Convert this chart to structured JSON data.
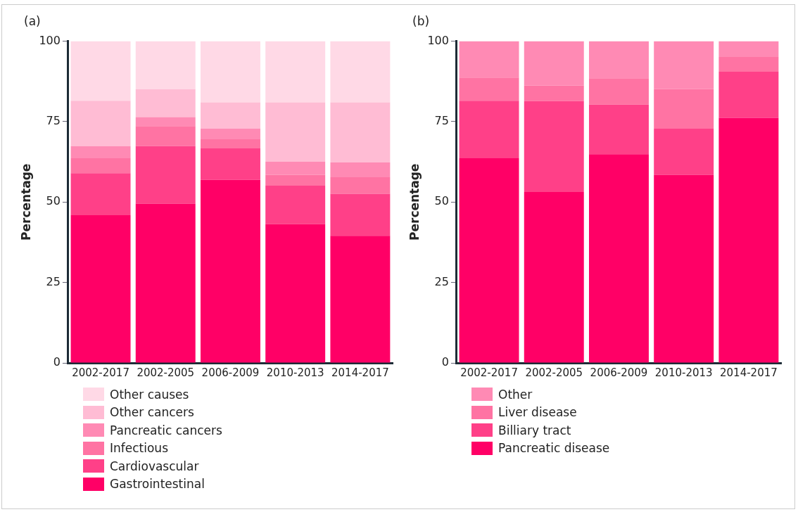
{
  "chart_data": [
    {
      "type": "bar",
      "title": "(a)",
      "ylabel": "Percentage",
      "stacked": true,
      "legend": "bottom",
      "grid": false,
      "categories": [
        "2002-2017",
        "2002-2005",
        "2006-2009",
        "2010-2013",
        "2014-2017"
      ],
      "ylim": [
        0,
        100
      ],
      "yticks": [
        0,
        25,
        50,
        75,
        100
      ],
      "series": [
        {
          "name": "Gastrointestinal",
          "color": "#ff0066",
          "values": [
            45.9,
            49.5,
            56.9,
            43.1,
            39.5
          ]
        },
        {
          "name": "Cardiovascular",
          "color": "#ff4088",
          "values": [
            13.1,
            17.9,
            9.8,
            12.0,
            13.1
          ]
        },
        {
          "name": "Infectious",
          "color": "#ff73a3",
          "values": [
            4.6,
            6.2,
            2.8,
            3.4,
            5.1
          ]
        },
        {
          "name": "Pancreatic cancers",
          "color": "#ff8ab4",
          "values": [
            3.8,
            2.8,
            3.3,
            4.1,
            4.6
          ]
        },
        {
          "name": "Other cancers",
          "color": "#ffbcd4",
          "values": [
            14.1,
            8.7,
            8.2,
            18.4,
            18.7
          ]
        },
        {
          "name": "Other causes",
          "color": "#ffd9e6",
          "values": [
            18.5,
            14.9,
            19.0,
            19.0,
            19.0
          ]
        }
      ]
    },
    {
      "type": "bar",
      "title": "(b)",
      "ylabel": "Percentage",
      "stacked": true,
      "legend": "bottom",
      "grid": false,
      "categories": [
        "2002-2017",
        "2002-2005",
        "2006-2009",
        "2010-2013",
        "2014-2017"
      ],
      "ylim": [
        0,
        100
      ],
      "yticks": [
        0,
        25,
        50,
        75,
        100
      ],
      "series": [
        {
          "name": "Pancreatic disease",
          "color": "#ff0066",
          "values": [
            63.6,
            53.1,
            64.9,
            58.5,
            76.2
          ]
        },
        {
          "name": "Billiary tract",
          "color": "#ff4088",
          "values": [
            17.9,
            28.3,
            15.4,
            14.3,
            14.3
          ]
        },
        {
          "name": "Liver disease",
          "color": "#ff73a3",
          "values": [
            7.2,
            4.8,
            8.2,
            12.3,
            4.6
          ]
        },
        {
          "name": "Other",
          "color": "#ff8ab4",
          "values": [
            11.3,
            13.8,
            11.5,
            14.9,
            4.9
          ]
        }
      ]
    }
  ]
}
